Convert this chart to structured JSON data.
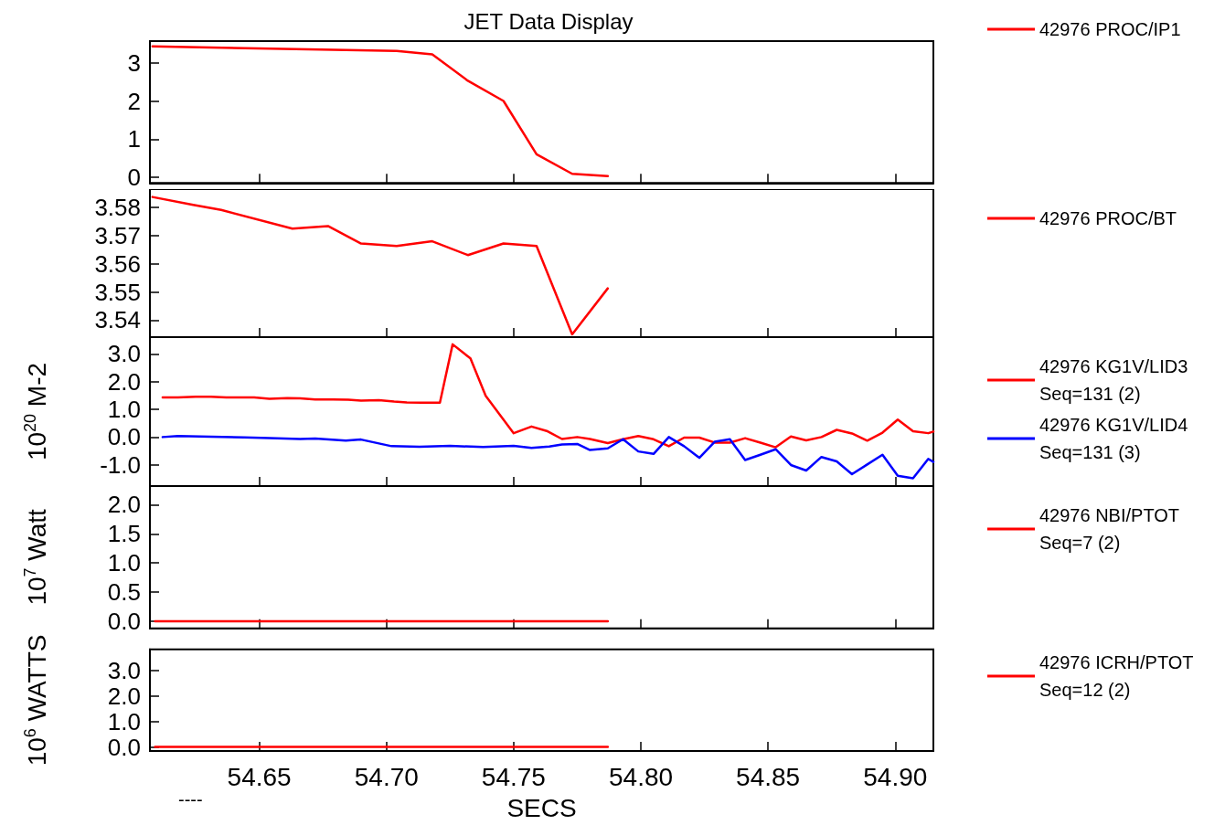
{
  "chart_data": [
    {
      "type": "line",
      "title": "JET Data Display",
      "xlim": [
        54.607,
        54.915
      ],
      "xticks": [
        {
          "value": 54.65,
          "label": null
        },
        {
          "value": 54.7,
          "label": null
        },
        {
          "value": 54.75,
          "label": null
        },
        {
          "value": 54.8,
          "label": null
        },
        {
          "value": 54.85,
          "label": null
        },
        {
          "value": 54.9,
          "label": null
        }
      ],
      "ylim": [
        -0.15,
        3.57
      ],
      "yticks": [
        0,
        1,
        2,
        3
      ],
      "tick_labels": "y",
      "grid": false,
      "marker": "none",
      "legend": "right",
      "series": [
        {
          "name": "42976 PROC/IP1",
          "color": "#ff0000",
          "x": [
            54.608,
            54.704,
            54.718,
            54.732,
            54.746,
            54.759,
            54.773,
            54.787
          ],
          "values": [
            3.43,
            3.31,
            3.22,
            2.53,
            2.0,
            0.6,
            0.09,
            0.03
          ]
        }
      ]
    },
    {
      "type": "line",
      "xlim": [
        54.607,
        54.915
      ],
      "xticks": [
        {
          "value": 54.65,
          "label": null
        },
        {
          "value": 54.7,
          "label": null
        },
        {
          "value": 54.75,
          "label": null
        },
        {
          "value": 54.8,
          "label": null
        },
        {
          "value": 54.85,
          "label": null
        },
        {
          "value": 54.9,
          "label": null
        }
      ],
      "ylim": [
        3.534,
        3.5865
      ],
      "yticks": [
        3.54,
        3.55,
        3.56,
        3.57,
        3.58
      ],
      "tick_labels": "y",
      "grid": false,
      "marker": "none",
      "legend": "right",
      "series": [
        {
          "name": "42976 PROC/BT",
          "color": "#ff0000",
          "x": [
            54.608,
            54.624,
            54.635,
            54.663,
            54.677,
            54.69,
            54.704,
            54.718,
            54.732,
            54.746,
            54.759,
            54.773,
            54.787
          ],
          "values": [
            3.5837,
            3.5809,
            3.5791,
            3.5725,
            3.5734,
            3.5672,
            3.5663,
            3.568,
            3.5631,
            3.5672,
            3.5663,
            3.535,
            3.5513
          ]
        }
      ]
    },
    {
      "type": "line",
      "ylabel": "10$^{20}$ M-2",
      "xlim": [
        54.607,
        54.915
      ],
      "xticks": [
        {
          "value": 54.65,
          "label": null
        },
        {
          "value": 54.7,
          "label": null
        },
        {
          "value": 54.75,
          "label": null
        },
        {
          "value": 54.8,
          "label": null
        },
        {
          "value": 54.85,
          "label": null
        },
        {
          "value": 54.9,
          "label": null
        }
      ],
      "ylim": [
        -1.77,
        3.61
      ],
      "yticks": [
        {
          "value": -1,
          "label": "-1.0"
        },
        {
          "value": 0,
          "label": "0.0"
        },
        {
          "value": 1,
          "label": "1.0"
        },
        {
          "value": 2,
          "label": "2.0"
        },
        {
          "value": 3,
          "label": "3.0"
        }
      ],
      "tick_labels": "y",
      "grid": false,
      "marker": "none",
      "legend": "right",
      "series": [
        {
          "name": "42976 KG1V/LID3\nSeq=131 (2)",
          "color": "#ff0000",
          "x": [
            54.612,
            54.618,
            54.625,
            54.631,
            54.637,
            54.644,
            54.648,
            54.654,
            54.661,
            54.666,
            54.672,
            54.679,
            54.685,
            54.69,
            54.697,
            54.703,
            54.708,
            54.714,
            54.721,
            54.726,
            54.733,
            54.739,
            54.75,
            54.757,
            54.763,
            54.769,
            54.775,
            54.78,
            54.787,
            54.793,
            54.799,
            54.805,
            54.811,
            54.817,
            54.823,
            54.829,
            54.835,
            54.841,
            54.847,
            54.853,
            54.859,
            54.865,
            54.871,
            54.877,
            54.883,
            54.889,
            54.895,
            54.901,
            54.907,
            54.913,
            54.915
          ],
          "values": [
            1.43,
            1.43,
            1.46,
            1.46,
            1.43,
            1.43,
            1.43,
            1.38,
            1.41,
            1.4,
            1.36,
            1.36,
            1.35,
            1.32,
            1.33,
            1.28,
            1.25,
            1.24,
            1.24,
            3.35,
            2.84,
            1.49,
            0.14,
            0.38,
            0.22,
            -0.07,
            0.0,
            -0.07,
            -0.22,
            -0.08,
            0.04,
            -0.08,
            -0.33,
            -0.02,
            -0.02,
            -0.2,
            -0.2,
            -0.04,
            -0.2,
            -0.37,
            0.02,
            -0.12,
            0.0,
            0.26,
            0.13,
            -0.13,
            0.16,
            0.63,
            0.21,
            0.14,
            0.2
          ]
        },
        {
          "name": "42976 KG1V/LID4\nSeq=131 (3)",
          "color": "#0000ff",
          "x": [
            54.612,
            54.618,
            54.631,
            54.644,
            54.654,
            54.666,
            54.672,
            54.684,
            54.69,
            54.702,
            54.713,
            54.725,
            54.738,
            54.75,
            54.757,
            54.764,
            54.769,
            54.775,
            54.78,
            54.787,
            54.793,
            54.799,
            54.805,
            54.811,
            54.817,
            54.823,
            54.829,
            54.835,
            54.841,
            54.847,
            54.853,
            54.859,
            54.865,
            54.871,
            54.877,
            54.883,
            54.889,
            54.895,
            54.901,
            54.907,
            54.913,
            54.915
          ],
          "values": [
            0.0,
            0.04,
            0.01,
            -0.01,
            -0.04,
            -0.07,
            -0.05,
            -0.13,
            -0.09,
            -0.33,
            -0.35,
            -0.32,
            -0.36,
            -0.32,
            -0.39,
            -0.34,
            -0.27,
            -0.25,
            -0.47,
            -0.41,
            -0.08,
            -0.52,
            -0.61,
            0.0,
            -0.33,
            -0.75,
            -0.17,
            -0.08,
            -0.83,
            -0.64,
            -0.44,
            -1.01,
            -1.21,
            -0.72,
            -0.88,
            -1.34,
            -0.99,
            -0.64,
            -1.4,
            -1.49,
            -0.79,
            -0.9
          ]
        }
      ]
    },
    {
      "type": "line",
      "ylabel": "10$^{7}$ Watt",
      "xlim": [
        54.607,
        54.915
      ],
      "xticks": [
        {
          "value": 54.65,
          "label": null
        },
        {
          "value": 54.7,
          "label": null
        },
        {
          "value": 54.75,
          "label": null
        },
        {
          "value": 54.8,
          "label": null
        },
        {
          "value": 54.85,
          "label": null
        },
        {
          "value": 54.9,
          "label": null
        }
      ],
      "ylim": [
        -0.12,
        2.32
      ],
      "yticks": [
        {
          "value": 0,
          "label": "0.0"
        },
        0.5,
        {
          "value": 1,
          "label": "1.0"
        },
        1.5,
        {
          "value": 2,
          "label": "2.0"
        }
      ],
      "tick_labels": "y",
      "grid": false,
      "marker": "none",
      "legend": "right",
      "series": [
        {
          "name": "42976 NBI/PTOT\nSeq=7 (2)",
          "color": "#ff0000",
          "x": [
            54.609,
            54.787
          ],
          "values": [
            0,
            0
          ]
        }
      ]
    },
    {
      "type": "line",
      "ylabel": "10$^{6}$ WATTS",
      "xlabel": "SECS",
      "annotations": [
        "----"
      ],
      "xlim": [
        54.607,
        54.915
      ],
      "xticks": [
        54.65,
        {
          "value": 54.7,
          "label": "54.70"
        },
        54.75,
        {
          "value": 54.8,
          "label": "54.80"
        },
        54.85,
        {
          "value": 54.9,
          "label": "54.90"
        }
      ],
      "ylim": [
        -0.16,
        3.83
      ],
      "yticks": [
        {
          "value": 0,
          "label": "0.0"
        },
        {
          "value": 1,
          "label": "1.0"
        },
        {
          "value": 2,
          "label": "2.0"
        },
        {
          "value": 3,
          "label": "3.0"
        }
      ],
      "grid": false,
      "marker": "none",
      "legend": "right",
      "series": [
        {
          "name": "42976 ICRH/PTOT\nSeq=12 (2)",
          "color": "#ff0000",
          "x": [
            54.609,
            54.787
          ],
          "values": [
            0,
            0
          ]
        }
      ]
    }
  ]
}
